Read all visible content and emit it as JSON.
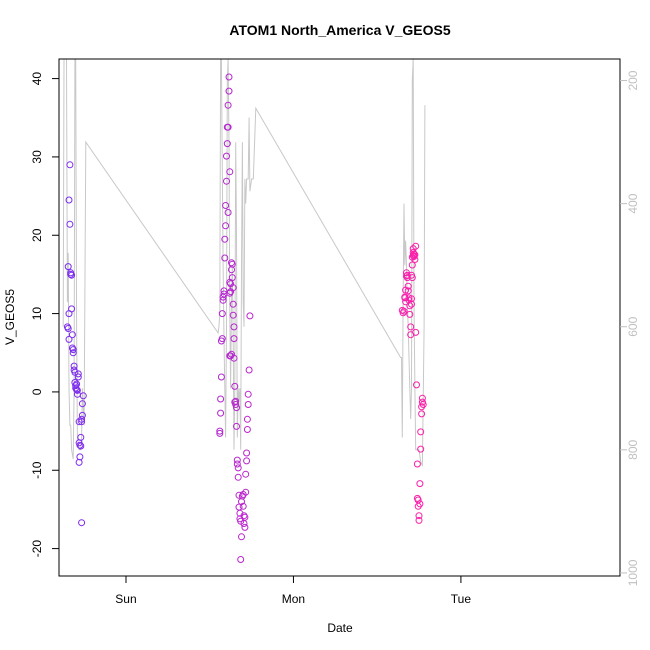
{
  "chart_data": {
    "type": "scatter",
    "title": "ATOM1 North_America V_GEOS5",
    "xlabel": "Date",
    "ylabel": "V_GEOS5",
    "x_tick_labels": [
      {
        "label": "Sun",
        "day": 1.0
      },
      {
        "label": "Mon",
        "day": 2.0
      },
      {
        "label": "Tue",
        "day": 3.0
      }
    ],
    "xlim": [
      0.6,
      3.95
    ],
    "ylim": [
      -23.5,
      42.5
    ],
    "y_ticks": [
      -20,
      -10,
      0,
      10,
      20,
      30,
      40
    ],
    "y2_ticks": [
      200,
      400,
      600,
      800,
      1000
    ],
    "y2lim": [
      1005,
      165
    ],
    "grid": false,
    "colors": {
      "points_start": "#7a2cf0",
      "points_end": "#ff1fa8",
      "pressure_line": "#c8c8c8",
      "right_axis": "#c0c0c0"
    },
    "series": [
      {
        "kind": "points",
        "points": [
          [
            0.65,
            8.3
          ],
          [
            0.66,
            6.7
          ],
          [
            0.655,
            8.1
          ],
          [
            0.66,
            10.0
          ],
          [
            0.655,
            16.0
          ],
          [
            0.66,
            24.5
          ],
          [
            0.665,
            29.0
          ],
          [
            0.665,
            21.4
          ],
          [
            0.67,
            15.2
          ],
          [
            0.67,
            15.0
          ],
          [
            0.675,
            14.9
          ],
          [
            0.675,
            10.6
          ],
          [
            0.68,
            7.3
          ],
          [
            0.68,
            5.6
          ],
          [
            0.685,
            5.4
          ],
          [
            0.685,
            5.0
          ],
          [
            0.69,
            3.3
          ],
          [
            0.69,
            2.8
          ],
          [
            0.695,
            2.5
          ],
          [
            0.695,
            1.2
          ],
          [
            0.7,
            0.8
          ],
          [
            0.7,
            0.5
          ],
          [
            0.705,
            0.3
          ],
          [
            0.705,
            1.0
          ],
          [
            0.71,
            0.2
          ],
          [
            0.71,
            -0.3
          ],
          [
            0.715,
            2.3
          ],
          [
            0.715,
            1.9
          ],
          [
            0.72,
            -3.8
          ],
          [
            0.72,
            -6.5
          ],
          [
            0.725,
            -6.8
          ],
          [
            0.725,
            -8.3
          ],
          [
            0.72,
            -9.0
          ],
          [
            0.73,
            -6.9
          ],
          [
            0.73,
            -5.8
          ],
          [
            0.735,
            -3.8
          ],
          [
            0.735,
            -3.5
          ],
          [
            0.74,
            -3.0
          ],
          [
            0.74,
            -1.5
          ],
          [
            0.745,
            -0.5
          ],
          [
            0.735,
            -16.7
          ],
          [
            1.56,
            -5.0
          ],
          [
            1.56,
            -5.3
          ],
          [
            1.565,
            -2.7
          ],
          [
            1.565,
            -0.9
          ],
          [
            1.57,
            1.9
          ],
          [
            1.57,
            6.5
          ],
          [
            1.575,
            6.8
          ],
          [
            1.575,
            10.0
          ],
          [
            1.58,
            11.7
          ],
          [
            1.58,
            12.1
          ],
          [
            1.585,
            12.5
          ],
          [
            1.585,
            12.9
          ],
          [
            1.59,
            17.1
          ],
          [
            1.59,
            19.5
          ],
          [
            1.595,
            21.2
          ],
          [
            1.595,
            23.8
          ],
          [
            1.6,
            26.9
          ],
          [
            1.6,
            30.1
          ],
          [
            1.605,
            31.7
          ],
          [
            1.605,
            33.8
          ],
          [
            1.61,
            33.8
          ],
          [
            1.61,
            36.6
          ],
          [
            1.615,
            38.4
          ],
          [
            1.615,
            40.2
          ],
          [
            1.61,
            22.9
          ],
          [
            1.62,
            28.1
          ],
          [
            1.62,
            14.0
          ],
          [
            1.62,
            12.6
          ],
          [
            1.625,
            12.8
          ],
          [
            1.625,
            13.8
          ],
          [
            1.63,
            15.6
          ],
          [
            1.63,
            16.5
          ],
          [
            1.635,
            16.3
          ],
          [
            1.635,
            14.6
          ],
          [
            1.64,
            13.3
          ],
          [
            1.64,
            11.2
          ],
          [
            1.64,
            9.8
          ],
          [
            1.645,
            8.3
          ],
          [
            1.645,
            6.8
          ],
          [
            1.62,
            4.6
          ],
          [
            1.63,
            4.8
          ],
          [
            1.625,
            4.6
          ],
          [
            1.645,
            4.3
          ],
          [
            1.65,
            0.7
          ],
          [
            1.65,
            -1.3
          ],
          [
            1.655,
            -1.6
          ],
          [
            1.655,
            -1.2
          ],
          [
            1.66,
            -2.0
          ],
          [
            1.66,
            -4.4
          ],
          [
            1.665,
            -8.7
          ],
          [
            1.665,
            -9.2
          ],
          [
            1.67,
            -9.7
          ],
          [
            1.67,
            -10.9
          ],
          [
            1.675,
            -13.2
          ],
          [
            1.675,
            -14.7
          ],
          [
            1.68,
            -15.5
          ],
          [
            1.68,
            -16.2
          ],
          [
            1.685,
            -16.5
          ],
          [
            1.685,
            -21.4
          ],
          [
            1.69,
            -18.5
          ],
          [
            1.69,
            -14.0
          ],
          [
            1.695,
            -13.3
          ],
          [
            1.7,
            -13.1
          ],
          [
            1.7,
            -14.6
          ],
          [
            1.705,
            -15.8
          ],
          [
            1.705,
            -16.8
          ],
          [
            1.71,
            -17.3
          ],
          [
            1.71,
            -16.0
          ],
          [
            1.715,
            -12.8
          ],
          [
            1.715,
            -10.5
          ],
          [
            1.72,
            -8.8
          ],
          [
            1.72,
            -7.8
          ],
          [
            1.725,
            -4.8
          ],
          [
            1.725,
            -3.5
          ],
          [
            1.73,
            -1.6
          ],
          [
            1.73,
            -0.3
          ],
          [
            1.735,
            2.8
          ],
          [
            1.74,
            9.7
          ],
          [
            2.65,
            10.4
          ],
          [
            2.655,
            10.1
          ],
          [
            2.66,
            10.3
          ],
          [
            2.665,
            12.1
          ],
          [
            2.665,
            12.0
          ],
          [
            2.67,
            11.5
          ],
          [
            2.67,
            13.0
          ],
          [
            2.675,
            14.8
          ],
          [
            2.675,
            15.2
          ],
          [
            2.68,
            14.9
          ],
          [
            2.68,
            14.6
          ],
          [
            2.685,
            13.5
          ],
          [
            2.685,
            12.9
          ],
          [
            2.69,
            12.0
          ],
          [
            2.69,
            11.7
          ],
          [
            2.695,
            11.0
          ],
          [
            2.695,
            9.9
          ],
          [
            2.7,
            8.3
          ],
          [
            2.7,
            7.3
          ],
          [
            2.705,
            11.2
          ],
          [
            2.705,
            11.9
          ],
          [
            2.71,
            14.6
          ],
          [
            2.71,
            17.2
          ],
          [
            2.715,
            17.8
          ],
          [
            2.715,
            18.3
          ],
          [
            2.72,
            17.3
          ],
          [
            2.72,
            17.6
          ],
          [
            2.725,
            16.9
          ],
          [
            2.725,
            17.5
          ],
          [
            2.73,
            18.6
          ],
          [
            2.73,
            7.6
          ],
          [
            2.735,
            0.9
          ],
          [
            2.74,
            -9.2
          ],
          [
            2.74,
            -13.6
          ],
          [
            2.745,
            -13.8
          ],
          [
            2.745,
            -14.6
          ],
          [
            2.75,
            -15.8
          ],
          [
            2.75,
            -16.4
          ],
          [
            2.755,
            -14.3
          ],
          [
            2.755,
            -11.7
          ],
          [
            2.76,
            -7.3
          ],
          [
            2.76,
            -5.1
          ],
          [
            2.765,
            -2.8
          ],
          [
            2.765,
            -1.9
          ],
          [
            2.77,
            -1.3
          ],
          [
            2.77,
            -0.8
          ],
          [
            2.775,
            -1.6
          ],
          [
            2.72,
            17.3
          ],
          [
            2.715,
            17.4
          ],
          [
            2.71,
            16.2
          ],
          [
            2.705,
            14.9
          ]
        ]
      },
      {
        "kind": "line",
        "points": [
          [
            0.625,
            600
          ],
          [
            0.63,
            160
          ],
          [
            0.64,
            160
          ],
          [
            0.645,
            160
          ],
          [
            0.65,
            560
          ],
          [
            0.655,
            480
          ],
          [
            0.66,
            700
          ],
          [
            0.665,
            760
          ],
          [
            0.67,
            760
          ],
          [
            0.675,
            800
          ],
          [
            0.685,
            815
          ],
          [
            0.69,
            700
          ],
          [
            0.695,
            160
          ],
          [
            0.7,
            160
          ],
          [
            0.705,
            600
          ],
          [
            0.71,
            780
          ],
          [
            0.72,
            800
          ],
          [
            0.73,
            800
          ],
          [
            0.735,
            780
          ],
          [
            0.74,
            700
          ],
          [
            0.75,
            760
          ],
          [
            0.76,
            300
          ],
          [
            1.55,
            610
          ],
          [
            1.555,
            600
          ],
          [
            1.56,
            580
          ],
          [
            1.565,
            160
          ],
          [
            1.57,
            160
          ],
          [
            1.58,
            500
          ],
          [
            1.585,
            620
          ],
          [
            1.59,
            700
          ],
          [
            1.595,
            780
          ],
          [
            1.6,
            600
          ],
          [
            1.605,
            200
          ],
          [
            1.61,
            160
          ],
          [
            1.615,
            300
          ],
          [
            1.62,
            580
          ],
          [
            1.625,
            700
          ],
          [
            1.63,
            560
          ],
          [
            1.635,
            500
          ],
          [
            1.64,
            620
          ],
          [
            1.645,
            800
          ],
          [
            1.65,
            700
          ],
          [
            1.655,
            300
          ],
          [
            1.66,
            450
          ],
          [
            1.665,
            780
          ],
          [
            1.67,
            700
          ],
          [
            1.675,
            720
          ],
          [
            1.68,
            700
          ],
          [
            1.685,
            800
          ],
          [
            1.69,
            500
          ],
          [
            1.695,
            300
          ],
          [
            1.7,
            560
          ],
          [
            1.705,
            600
          ],
          [
            1.71,
            360
          ],
          [
            1.715,
            400
          ],
          [
            1.72,
            360
          ],
          [
            1.73,
            360
          ],
          [
            1.735,
            260
          ],
          [
            1.74,
            380
          ],
          [
            1.75,
            360
          ],
          [
            1.76,
            360
          ],
          [
            1.775,
            245
          ],
          [
            2.64,
            650
          ],
          [
            2.645,
            650
          ],
          [
            2.65,
            780
          ],
          [
            2.655,
            560
          ],
          [
            2.66,
            400
          ],
          [
            2.665,
            500
          ],
          [
            2.67,
            460
          ],
          [
            2.675,
            500
          ],
          [
            2.68,
            560
          ],
          [
            2.685,
            600
          ],
          [
            2.69,
            650
          ],
          [
            2.695,
            700
          ],
          [
            2.7,
            750
          ],
          [
            2.705,
            700
          ],
          [
            2.71,
            200
          ],
          [
            2.715,
            160
          ],
          [
            2.72,
            560
          ],
          [
            2.725,
            700
          ],
          [
            2.73,
            800
          ],
          [
            2.74,
            800
          ],
          [
            2.75,
            800
          ],
          [
            2.76,
            820
          ],
          [
            2.77,
            825
          ],
          [
            2.78,
            600
          ],
          [
            2.785,
            240
          ]
        ]
      }
    ]
  }
}
